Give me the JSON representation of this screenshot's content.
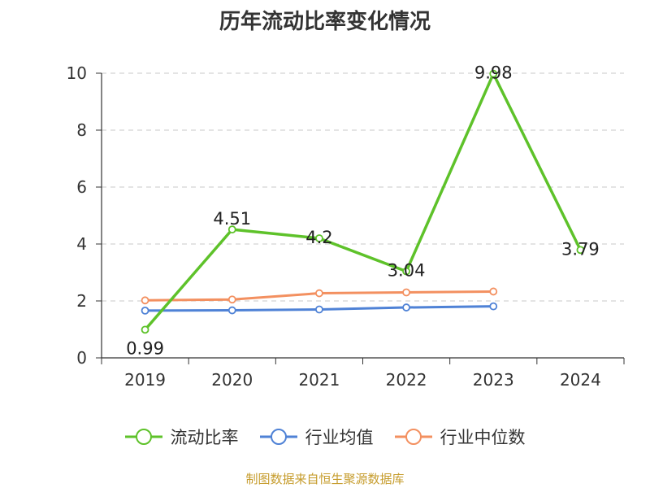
{
  "chart_data": {
    "type": "line",
    "title": "历年流动比率变化情况",
    "categories": [
      "2019",
      "2020",
      "2021",
      "2022",
      "2023",
      "2024"
    ],
    "ylim": [
      0,
      10
    ],
    "yticks": [
      0,
      2,
      4,
      6,
      8,
      10
    ],
    "grid": "horizontal dashed",
    "legend_position": "bottom",
    "series": [
      {
        "name": "流动比率",
        "color": "#5ec22a",
        "values": [
          0.99,
          4.51,
          4.2,
          3.04,
          9.98,
          3.79
        ],
        "labels": [
          "0.99",
          "4.51",
          "4.2",
          "3.04",
          "9.98",
          "3.79"
        ]
      },
      {
        "name": "行业均值",
        "color": "#4f82d6",
        "values": [
          1.66,
          1.67,
          1.7,
          1.77,
          1.81,
          null
        ]
      },
      {
        "name": "行业中位数",
        "color": "#f39060",
        "values": [
          2.02,
          2.05,
          2.27,
          2.3,
          2.33,
          null
        ]
      }
    ]
  },
  "footer": {
    "source": "制图数据来自恒生聚源数据库"
  }
}
